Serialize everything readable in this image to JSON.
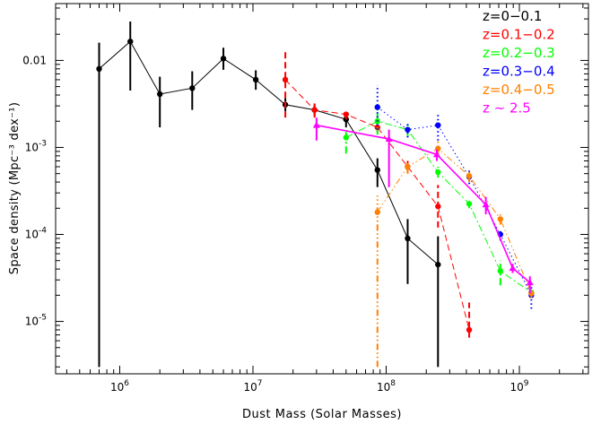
{
  "chart_data": {
    "type": "scatter",
    "title": "",
    "xlabel": "Dust Mass (Solar Masses)",
    "ylabel": "Space density  (Mpc⁻³ dex⁻¹)",
    "x_scale": "log",
    "y_scale": "log",
    "xlim": [
      330000,
      3300000000
    ],
    "ylim": [
      2.5e-06,
      0.045
    ],
    "grid": false,
    "legend_position": "top-right",
    "x_ticks": [
      {
        "value": 1000000,
        "base": "10",
        "exp": "6"
      },
      {
        "value": 10000000,
        "base": "10",
        "exp": "7"
      },
      {
        "value": 100000000,
        "base": "10",
        "exp": "8"
      },
      {
        "value": 1000000000,
        "base": "10",
        "exp": "9"
      }
    ],
    "y_ticks": [
      {
        "value": 1e-05,
        "base": "10",
        "exp": "-5"
      },
      {
        "value": 0.0001,
        "base": "10",
        "exp": "-4"
      },
      {
        "value": 0.001,
        "base": "10",
        "exp": "-3"
      },
      {
        "value": 0.01,
        "base": "",
        "exp": "",
        "text": "0.01"
      }
    ],
    "series": [
      {
        "name": "z=0−0.1",
        "color": "#000000",
        "line_style": "solid",
        "marker": "circle",
        "points": [
          {
            "x": 700000,
            "y": 0.008,
            "ylo": 3e-06,
            "yhi": 0.016
          },
          {
            "x": 1200000,
            "y": 0.0165,
            "ylo": 0.0045,
            "yhi": 0.028
          },
          {
            "x": 2000000,
            "y": 0.0041,
            "ylo": 0.0017,
            "yhi": 0.0065
          },
          {
            "x": 3500000,
            "y": 0.0048,
            "ylo": 0.0027,
            "yhi": 0.0075
          },
          {
            "x": 6000000,
            "y": 0.0105,
            "ylo": 0.0078,
            "yhi": 0.014
          },
          {
            "x": 10500000,
            "y": 0.006,
            "ylo": 0.0046,
            "yhi": 0.0077
          },
          {
            "x": 17500000,
            "y": 0.0031,
            "ylo": 0.0026,
            "yhi": 0.0037
          },
          {
            "x": 29000000,
            "y": 0.0027,
            "ylo": 0.0023,
            "yhi": 0.0031
          },
          {
            "x": 50000000,
            "y": 0.0021,
            "ylo": 0.0017,
            "yhi": 0.0025
          },
          {
            "x": 86000000,
            "y": 0.00055,
            "ylo": 0.00035,
            "yhi": 0.00075
          },
          {
            "x": 145000000,
            "y": 9e-05,
            "ylo": 2.7e-05,
            "yhi": 0.00015
          },
          {
            "x": 245000000,
            "y": 4.5e-05,
            "ylo": 3e-06,
            "yhi": 9.5e-05
          }
        ]
      },
      {
        "name": "z=0.1−0.2",
        "color": "#ff0000",
        "line_style": "dashed",
        "marker": "circle",
        "points": [
          {
            "x": 17500000,
            "y": 0.006,
            "ylo": 0.0022,
            "yhi": 0.0125
          },
          {
            "x": 29000000,
            "y": 0.0027,
            "ylo": 0.0022,
            "yhi": 0.0032
          },
          {
            "x": 50000000,
            "y": 0.0024,
            "ylo": 0.0021,
            "yhi": 0.0027
          },
          {
            "x": 86000000,
            "y": 0.0017,
            "ylo": 0.0015,
            "yhi": 0.0019
          },
          {
            "x": 145000000,
            "y": 0.0006,
            "ylo": 0.0005,
            "yhi": 0.0007
          },
          {
            "x": 245000000,
            "y": 0.00021,
            "ylo": 0.00012,
            "yhi": 0.00037
          },
          {
            "x": 420000000,
            "y": 8e-06,
            "ylo": 6.5e-06,
            "yhi": 1.65e-05
          }
        ]
      },
      {
        "name": "z=0.2−0.3",
        "color": "#00ff00",
        "line_style": "dashdot",
        "marker": "circle",
        "points": [
          {
            "x": 50000000,
            "y": 0.0013,
            "ylo": 0.00085,
            "yhi": 0.0016
          },
          {
            "x": 86000000,
            "y": 0.002,
            "ylo": 0.0014,
            "yhi": 0.0029
          },
          {
            "x": 145000000,
            "y": 0.0016,
            "ylo": 0.00135,
            "yhi": 0.0019
          },
          {
            "x": 245000000,
            "y": 0.00052,
            "ylo": 0.00045,
            "yhi": 0.0006
          },
          {
            "x": 420000000,
            "y": 0.000225,
            "ylo": 0.0002,
            "yhi": 0.00025
          },
          {
            "x": 720000000,
            "y": 3.8e-05,
            "ylo": 2.6e-05,
            "yhi": 5e-05
          },
          {
            "x": 1230000000,
            "y": 2.15e-05,
            "ylo": 1.95e-05,
            "yhi": 2.35e-05
          }
        ]
      },
      {
        "name": "z=0.3−0.4",
        "color": "#0000ff",
        "line_style": "dotted",
        "marker": "circle",
        "points": [
          {
            "x": 86000000,
            "y": 0.0029,
            "ylo": 0.0016,
            "yhi": 0.0052
          },
          {
            "x": 145000000,
            "y": 0.0016,
            "ylo": 0.0013,
            "yhi": 0.0019
          },
          {
            "x": 245000000,
            "y": 0.0018,
            "ylo": 0.0012,
            "yhi": 0.0025
          },
          {
            "x": 420000000,
            "y": 0.00046,
            "ylo": 0.00038,
            "yhi": 0.00054
          },
          {
            "x": 720000000,
            "y": 0.0001,
            "ylo": 8.5e-05,
            "yhi": 0.000115
          },
          {
            "x": 1230000000,
            "y": 2e-05,
            "ylo": 1.4e-05,
            "yhi": 2.6e-05
          }
        ]
      },
      {
        "name": "z=0.4−0.5",
        "color": "#ff8000",
        "line_style": "dash-dot-dot",
        "marker": "circle",
        "points": [
          {
            "x": 86000000,
            "y": 0.00018,
            "ylo": 3e-06,
            "yhi": 0.00028
          },
          {
            "x": 145000000,
            "y": 0.0006,
            "ylo": 0.0005,
            "yhi": 0.0007
          },
          {
            "x": 245000000,
            "y": 0.00097,
            "ylo": 0.0008,
            "yhi": 0.0012
          },
          {
            "x": 420000000,
            "y": 0.00047,
            "ylo": 0.0004,
            "yhi": 0.00055
          },
          {
            "x": 720000000,
            "y": 0.00015,
            "ylo": 0.00013,
            "yhi": 0.00017
          },
          {
            "x": 1230000000,
            "y": 2.1e-05,
            "ylo": 1.85e-05,
            "yhi": 2.35e-05
          }
        ]
      },
      {
        "name": "z ∼ 2.5",
        "color": "#ff00ff",
        "line_style": "solid",
        "marker": "triangle",
        "points": [
          {
            "x": 30000000,
            "y": 0.0018,
            "ylo": 0.0012,
            "yhi": 0.0022
          },
          {
            "x": 105000000,
            "y": 0.00125,
            "ylo": 0.00035,
            "yhi": 0.0016
          },
          {
            "x": 240000000,
            "y": 0.00083,
            "ylo": 0.0007,
            "yhi": 0.00095
          },
          {
            "x": 560000000,
            "y": 0.00022,
            "ylo": 0.00017,
            "yhi": 0.00027
          },
          {
            "x": 890000000,
            "y": 4.1e-05,
            "ylo": 3.6e-05,
            "yhi": 4.6e-05
          },
          {
            "x": 1200000000,
            "y": 2.8e-05,
            "ylo": 2.1e-05,
            "yhi": 3.3e-05
          }
        ]
      }
    ]
  }
}
